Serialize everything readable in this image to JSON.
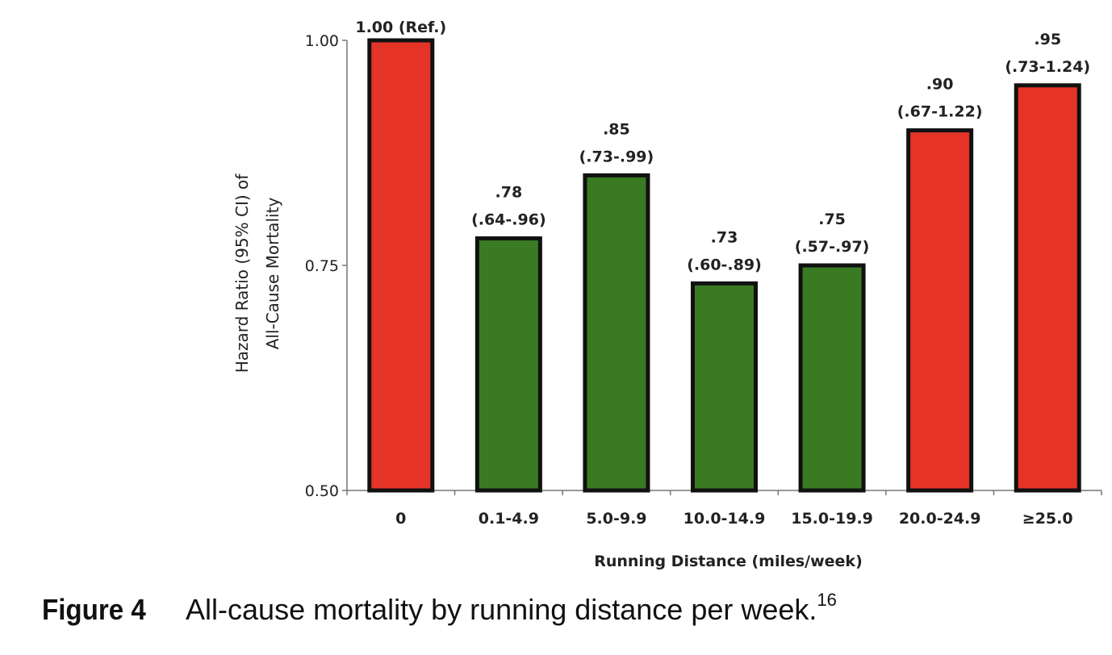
{
  "chart_data": {
    "type": "bar",
    "title": "",
    "xlabel": "Running Distance (miles/week)",
    "ylabel_lines": [
      "Hazard Ratio (95% CI) of",
      "All-Cause Mortality"
    ],
    "ylim": [
      0.5,
      1.0
    ],
    "yticks": [
      "0.50",
      "0.75",
      "1.00"
    ],
    "ytick_values": [
      0.5,
      0.75,
      1.0
    ],
    "grid": false,
    "categories": [
      "0",
      "0.1-4.9",
      "5.0-9.9",
      "10.0-14.9",
      "15.0-19.9",
      "20.0-24.9",
      "≥25.0"
    ],
    "values": [
      1.0,
      0.78,
      0.85,
      0.73,
      0.75,
      0.9,
      0.95
    ],
    "value_labels": [
      "1.00 (Ref.)",
      ".78",
      ".85",
      ".73",
      ".75",
      ".90",
      ".95"
    ],
    "ci_labels": [
      "",
      "(.64-.96)",
      "(.73-.99)",
      "(.60-.89)",
      "(.57-.97)",
      "(.67-1.22)",
      "(.73-1.24)"
    ],
    "bar_colors": [
      "#e53327",
      "#3a7a23",
      "#3a7a23",
      "#3a7a23",
      "#3a7a23",
      "#e53327",
      "#e53327"
    ]
  },
  "caption": {
    "label": "Figure 4",
    "text": "All-cause mortality by running distance per week.",
    "ref": "16"
  }
}
